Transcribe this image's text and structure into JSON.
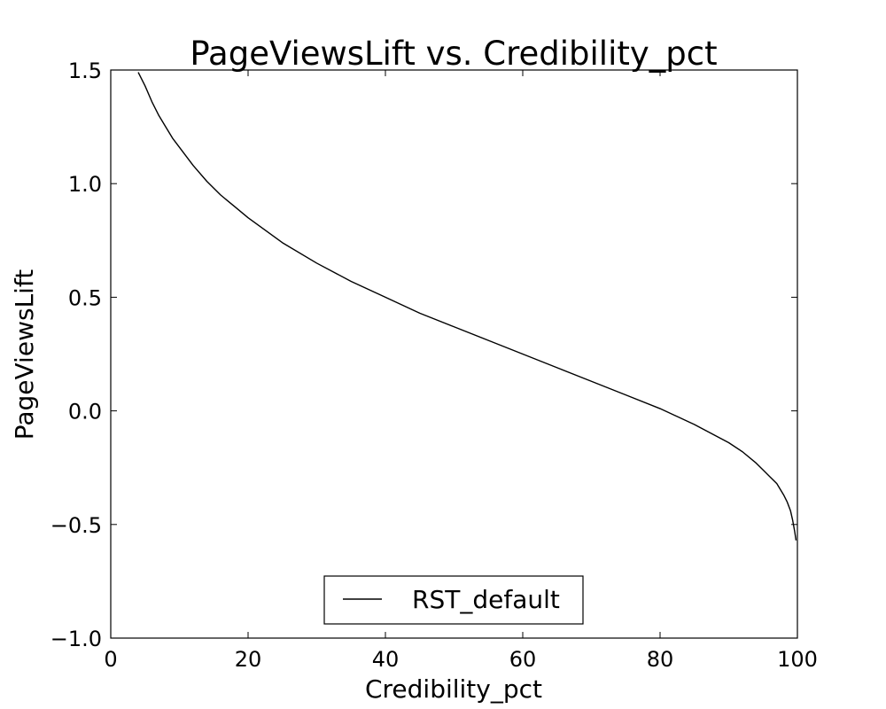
{
  "chart_data": {
    "type": "line",
    "title": "PageViewsLift vs. Credibility_pct",
    "xlabel": "Credibility_pct",
    "ylabel": "PageViewsLift",
    "xlim": [
      0,
      100
    ],
    "ylim": [
      -1.0,
      1.5
    ],
    "x_ticks": [
      0,
      20,
      40,
      60,
      80,
      100
    ],
    "y_ticks": [
      -1.0,
      -0.5,
      0.0,
      0.5,
      1.0,
      1.5
    ],
    "x_tick_labels": [
      "0",
      "20",
      "40",
      "60",
      "80",
      "100"
    ],
    "y_tick_labels": [
      "−1.0",
      "−0.5",
      "0.0",
      "0.5",
      "1.0",
      "1.5"
    ],
    "grid": false,
    "legend_position": "bottom-center",
    "series": [
      {
        "name": "RST_default",
        "color": "#000000",
        "x": [
          4,
          5,
          6,
          7,
          8,
          9,
          10,
          12,
          14,
          16,
          18,
          20,
          25,
          30,
          35,
          40,
          45,
          50,
          55,
          60,
          65,
          70,
          75,
          80,
          85,
          90,
          92,
          94,
          95,
          96,
          97,
          98,
          98.5,
          99,
          99.3,
          99.6,
          99.8
        ],
        "y": [
          1.49,
          1.43,
          1.36,
          1.3,
          1.25,
          1.2,
          1.16,
          1.08,
          1.01,
          0.95,
          0.9,
          0.85,
          0.74,
          0.65,
          0.57,
          0.5,
          0.43,
          0.37,
          0.31,
          0.25,
          0.19,
          0.13,
          0.07,
          0.01,
          -0.06,
          -0.14,
          -0.18,
          -0.23,
          -0.26,
          -0.29,
          -0.32,
          -0.37,
          -0.4,
          -0.44,
          -0.48,
          -0.53,
          -0.57
        ]
      }
    ]
  }
}
